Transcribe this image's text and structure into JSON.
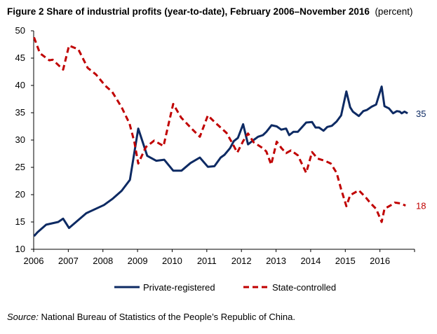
{
  "title": {
    "bold": "Figure 2 Share of industrial profits (year-to-date), February 2006–November 2016",
    "unit": "(percent)"
  },
  "source": {
    "label": "Source:",
    "text": "National Bureau of Statistics of the People’s Republic of China."
  },
  "chart_data": {
    "type": "line",
    "title": "Figure 2 Share of industrial profits (year-to-date), February 2006–November 2016",
    "ylabel": "(percent)",
    "xlabel": "",
    "xlim": [
      2006,
      2017
    ],
    "ylim": [
      10,
      50
    ],
    "x_ticks": [
      "2006",
      "2007",
      "2008",
      "2009",
      "2010",
      "2011",
      "2012",
      "2013",
      "2014",
      "2015",
      "2016"
    ],
    "y_ticks": [
      "10",
      "15",
      "20",
      "25",
      "30",
      "35",
      "40",
      "45",
      "50"
    ],
    "grid": false,
    "legend": "bottom",
    "series": [
      {
        "name": "Private-registered",
        "color": "#0d2a63",
        "style": "solid",
        "end_label": "35",
        "x": [
          2006.01,
          2006.11,
          2006.36,
          2006.71,
          2006.85,
          2007.02,
          2007.52,
          2008.03,
          2008.27,
          2008.54,
          2008.78,
          2009.02,
          2009.28,
          2009.54,
          2009.77,
          2010.03,
          2010.27,
          2010.53,
          2010.8,
          2011.03,
          2011.22,
          2011.4,
          2011.51,
          2011.67,
          2011.78,
          2011.9,
          2012.05,
          2012.19,
          2012.35,
          2012.48,
          2012.62,
          2012.72,
          2012.87,
          2013.02,
          2013.15,
          2013.29,
          2013.38,
          2013.5,
          2013.63,
          2013.87,
          2014.04,
          2014.14,
          2014.24,
          2014.37,
          2014.48,
          2014.61,
          2014.75,
          2014.88,
          2015.03,
          2015.14,
          2015.22,
          2015.39,
          2015.52,
          2015.62,
          2015.76,
          2015.89,
          2016.05,
          2016.13,
          2016.26,
          2016.38,
          2016.49,
          2016.57,
          2016.63,
          2016.71,
          2016.8
        ],
        "y": [
          12.4,
          13.1,
          14.5,
          15.0,
          15.6,
          13.9,
          16.6,
          18.1,
          19.2,
          20.7,
          22.7,
          32.1,
          27.1,
          26.2,
          26.4,
          24.4,
          24.4,
          25.8,
          26.8,
          25.1,
          25.2,
          26.8,
          27.3,
          28.5,
          29.8,
          30.4,
          32.9,
          29.2,
          30.0,
          30.6,
          30.9,
          31.5,
          32.7,
          32.5,
          31.9,
          32.1,
          30.9,
          31.5,
          31.5,
          33.2,
          33.3,
          32.3,
          32.3,
          31.7,
          32.4,
          32.6,
          33.4,
          34.5,
          38.9,
          36.0,
          35.2,
          34.4,
          35.3,
          35.5,
          36.1,
          36.5,
          39.8,
          36.2,
          35.8,
          34.9,
          35.3,
          35.2,
          34.9,
          35.2,
          34.9
        ]
      },
      {
        "name": "State-controlled",
        "color": "#c00000",
        "style": "dashed",
        "end_label": "18",
        "x": [
          2006.01,
          2006.18,
          2006.45,
          2006.55,
          2006.85,
          2007.02,
          2007.29,
          2007.56,
          2007.8,
          2008.06,
          2008.27,
          2008.54,
          2008.77,
          2008.91,
          2009.02,
          2009.24,
          2009.48,
          2009.75,
          2010.03,
          2010.26,
          2010.56,
          2010.8,
          2011.03,
          2011.24,
          2011.57,
          2011.74,
          2011.88,
          2012.05,
          2012.19,
          2012.35,
          2012.62,
          2012.72,
          2012.86,
          2013.02,
          2013.16,
          2013.29,
          2013.43,
          2013.63,
          2013.87,
          2014.04,
          2014.2,
          2014.41,
          2014.58,
          2014.75,
          2014.88,
          2015.03,
          2015.14,
          2015.39,
          2015.59,
          2015.72,
          2015.89,
          2016.05,
          2016.13,
          2016.3,
          2016.43,
          2016.6,
          2016.74
        ],
        "y": [
          48.8,
          45.9,
          44.6,
          44.7,
          42.9,
          47.3,
          46.6,
          43.2,
          42.0,
          40.0,
          38.8,
          36.0,
          33.0,
          29.6,
          25.7,
          28.7,
          29.9,
          28.9,
          36.6,
          34.1,
          32.1,
          30.6,
          34.5,
          33.2,
          31.3,
          29.4,
          27.7,
          29.8,
          31.2,
          29.6,
          28.5,
          27.9,
          25.5,
          29.7,
          28.5,
          27.6,
          28.1,
          27.2,
          24.0,
          27.8,
          26.6,
          26.2,
          25.7,
          24.0,
          21.0,
          17.9,
          19.9,
          20.8,
          19.5,
          18.5,
          17.4,
          15.0,
          17.4,
          18.0,
          18.55,
          18.4,
          18.0
        ]
      }
    ]
  }
}
